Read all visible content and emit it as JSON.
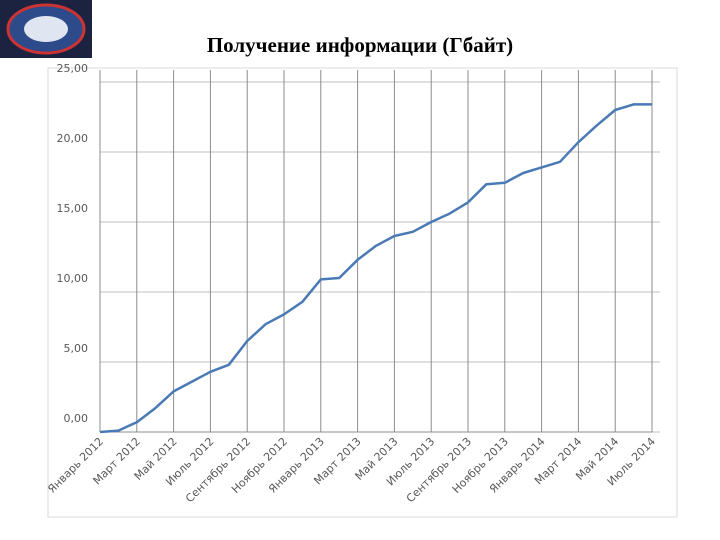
{
  "chart_data": {
    "type": "line",
    "title": "Получение информации (Гбайт)",
    "categories": [
      "Январь 2012",
      null,
      "Март 2012",
      null,
      "Май 2012",
      null,
      "Июль 2012",
      null,
      "Сентябрь 2012",
      null,
      "Ноябрь 2012",
      null,
      "Январь 2013",
      null,
      "Март 2013",
      null,
      "Май 2013",
      null,
      "Июль 2013",
      null,
      "Сентябрь 2013",
      null,
      "Ноябрь 2013",
      null,
      "Январь 2014",
      null,
      "Март 2014",
      null,
      "Май 2014",
      null,
      "Июль 2014"
    ],
    "values": [
      0,
      0.1,
      0.7,
      1.7,
      2.9,
      3.6,
      4.3,
      4.8,
      6.5,
      7.7,
      8.4,
      9.3,
      10.9,
      11.0,
      12.3,
      13.3,
      14.0,
      14.3,
      15.0,
      15.6,
      16.4,
      17.7,
      17.8,
      18.5,
      18.9,
      19.3,
      20.7,
      21.9,
      23.0,
      23.4,
      23.4
    ],
    "color": "#4a7ab5",
    "ylim": [
      0,
      25
    ],
    "yticks": [
      {
        "value": 0,
        "label": "0,00"
      },
      {
        "value": 5,
        "label": "5,00"
      },
      {
        "value": 10,
        "label": "10,00"
      },
      {
        "value": 15,
        "label": "15,00"
      },
      {
        "value": 20,
        "label": "20,00"
      },
      {
        "value": 25,
        "label": "25,00"
      }
    ],
    "grid": true
  }
}
